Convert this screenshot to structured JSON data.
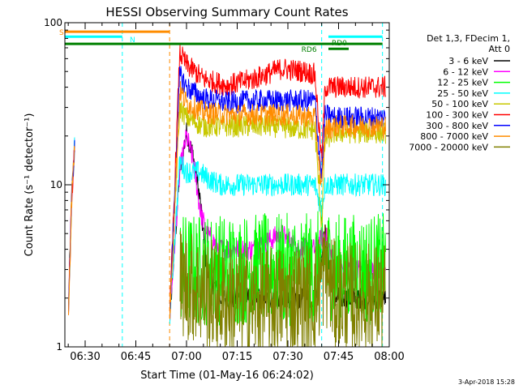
{
  "chart_data": {
    "type": "line",
    "title": "HESSI Observing Summary Count Rates",
    "xlabel": "Start Time (01-May-16 06:24:02)",
    "ylabel": "Count Rate (s⁻¹ detector⁻¹)",
    "y_scale": "log",
    "ylim": [
      1,
      100
    ],
    "xlim": [
      "06:24",
      "08:00"
    ],
    "grid": false,
    "legend_position": "right",
    "x_ticks": [
      "06:30",
      "06:45",
      "07:00",
      "07:15",
      "07:30",
      "07:45",
      "08:00"
    ],
    "y_ticks": [
      "1",
      "10",
      "100"
    ],
    "legend_header": [
      "Det 1,3, FDecim 1,",
      "Att 0"
    ],
    "timestamp": "3-Apr-2018 15:28",
    "series": [
      {
        "name": "3 - 6 keV",
        "color": "#000000",
        "x": [
          "06:25",
          "06:26",
          "06:27",
          "06:55",
          "06:58",
          "07:00",
          "07:02",
          "07:04",
          "07:06",
          "07:10",
          "07:20",
          "07:30",
          "07:38",
          "07:41",
          "07:44",
          "07:50",
          "07:59"
        ],
        "values": [
          1.5,
          8,
          20,
          1.5,
          12,
          21,
          15,
          8,
          3,
          2,
          2,
          2,
          2,
          5,
          2,
          2,
          2
        ]
      },
      {
        "name": "6 - 12 keV",
        "color": "#ff00ff",
        "x": [
          "06:25",
          "06:26",
          "06:27",
          "06:55",
          "06:58",
          "07:00",
          "07:02",
          "07:04",
          "07:06",
          "07:10",
          "07:20",
          "07:28",
          "07:33",
          "07:38",
          "07:41",
          "07:44",
          "07:50",
          "07:59"
        ],
        "values": [
          1.5,
          8,
          20,
          1.5,
          12,
          20,
          14,
          7,
          5,
          4,
          4,
          5,
          4,
          4,
          5,
          3,
          3,
          3
        ]
      },
      {
        "name": "12 - 25 keV",
        "color": "#00ff00",
        "x": [
          "06:58",
          "07:10",
          "07:20",
          "07:30",
          "07:38",
          "07:41",
          "07:44",
          "07:50",
          "07:59"
        ],
        "values": [
          3,
          3,
          3,
          3,
          3,
          3.5,
          3,
          3,
          3
        ]
      },
      {
        "name": "25 - 50 keV",
        "color": "#00ffff",
        "x": [
          "06:25",
          "06:26",
          "06:27",
          "06:55",
          "06:58",
          "07:00",
          "07:04",
          "07:06",
          "07:10",
          "07:20",
          "07:30",
          "07:38",
          "07:40",
          "07:41",
          "07:44",
          "07:50",
          "07:59"
        ],
        "values": [
          1.5,
          8,
          20,
          1.5,
          14,
          12,
          12,
          11,
          10,
          10,
          10,
          10,
          7,
          10,
          10,
          10,
          10
        ]
      },
      {
        "name": "50 - 100 keV",
        "color": "#c8c800",
        "x": [
          "06:25",
          "06:26",
          "06:27",
          "06:55",
          "06:58",
          "07:00",
          "07:05",
          "07:15",
          "07:25",
          "07:35",
          "07:38",
          "07:40",
          "07:41",
          "07:44",
          "07:50",
          "07:59"
        ],
        "values": [
          1.5,
          8,
          20,
          1.5,
          30,
          26,
          23,
          23,
          23,
          22,
          22,
          5.5,
          19,
          21,
          21,
          21
        ]
      },
      {
        "name": "100 - 300 keV",
        "color": "#ff0000",
        "x": [
          "06:25",
          "06:26",
          "06:27",
          "06:55",
          "06:58",
          "07:00",
          "07:05",
          "07:12",
          "07:20",
          "07:28",
          "07:35",
          "07:38",
          "07:40",
          "07:41",
          "07:44",
          "07:50",
          "07:59"
        ],
        "values": [
          1.5,
          8,
          20,
          1.5,
          65,
          55,
          45,
          41,
          45,
          52,
          50,
          48,
          14,
          40,
          40,
          40,
          40
        ]
      },
      {
        "name": "300 - 800 keV",
        "color": "#0000ff",
        "x": [
          "06:25",
          "06:26",
          "06:27",
          "06:55",
          "06:58",
          "07:00",
          "07:05",
          "07:12",
          "07:20",
          "07:30",
          "07:38",
          "07:40",
          "07:41",
          "07:44",
          "07:50",
          "07:59"
        ],
        "values": [
          1.5,
          8,
          20,
          1.5,
          48,
          40,
          34,
          32,
          33,
          33,
          33,
          11,
          27,
          26,
          26,
          26
        ]
      },
      {
        "name": "800 - 7000 keV",
        "color": "#ff8c00",
        "x": [
          "06:25",
          "06:26",
          "06:27",
          "06:55",
          "06:58",
          "07:00",
          "07:05",
          "07:12",
          "07:20",
          "07:30",
          "07:38",
          "07:40",
          "07:41",
          "07:44",
          "07:50",
          "07:59"
        ],
        "values": [
          1.5,
          8,
          20,
          1.5,
          38,
          32,
          28,
          27,
          27,
          27,
          26,
          9,
          22,
          23,
          23,
          23
        ]
      },
      {
        "name": "7000 - 20000 keV",
        "color": "#808000",
        "x": [
          "06:58",
          "07:10",
          "07:20",
          "07:30",
          "07:38",
          "07:41",
          "07:44",
          "07:50",
          "07:59"
        ],
        "values": [
          2.5,
          2,
          1.8,
          2,
          2,
          3,
          2,
          2,
          2
        ]
      }
    ],
    "annotations": [
      {
        "label": "S",
        "color": "#ff8c00",
        "from": "06:24",
        "to": "06:55",
        "level": 88
      },
      {
        "label": "N",
        "color": "#00ffff",
        "from": "06:24",
        "to": "06:41",
        "level": 82
      },
      {
        "label": "RD6",
        "color": "#008000",
        "from": "06:24",
        "to": "07:58",
        "level": 74
      },
      {
        "label": "RD0",
        "color": "#008000",
        "from": "07:42",
        "to": "07:48",
        "level": 69
      },
      {
        "label": "",
        "color": "#00ffff",
        "from": "07:42",
        "to": "07:58",
        "level": 82
      }
    ],
    "vertical_markers": [
      {
        "time": "06:24",
        "color": "#00ffff"
      },
      {
        "time": "06:41",
        "color": "#00ffff"
      },
      {
        "time": "06:55",
        "color": "#ff8c00"
      },
      {
        "time": "07:40",
        "color": "#00ffff"
      },
      {
        "time": "07:58",
        "color": "#00ffff"
      }
    ]
  }
}
